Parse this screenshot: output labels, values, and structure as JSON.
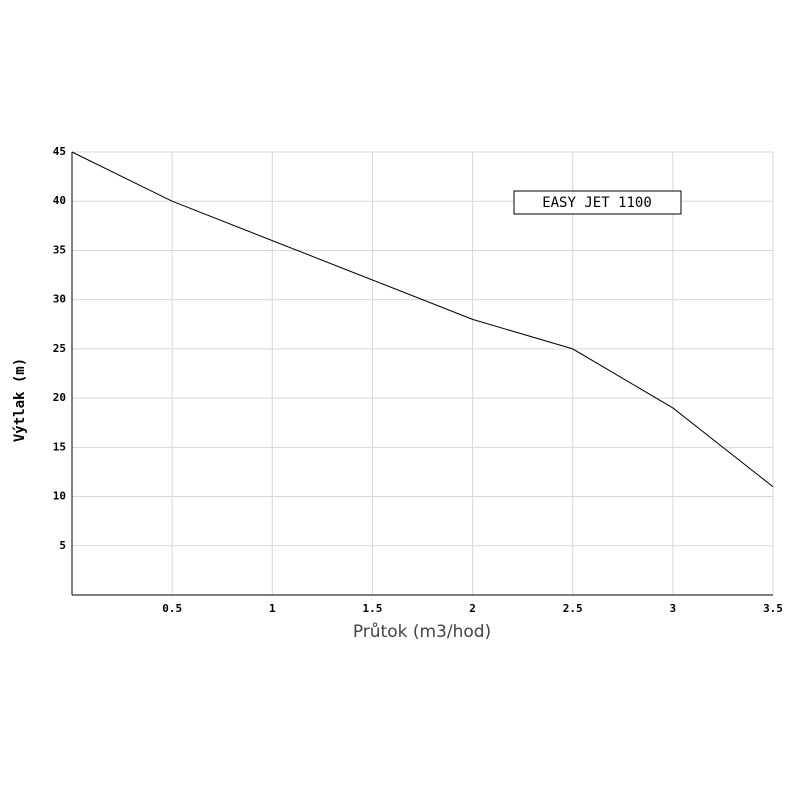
{
  "chart_data": {
    "type": "line",
    "xlabel": "Průtok (m3/hod)",
    "ylabel": "Výtlak (m)",
    "annotation": "EASY JET 1100",
    "x": [
      0,
      0.5,
      1,
      1.5,
      2,
      2.5,
      3,
      3.5
    ],
    "series": [
      {
        "name": "EASY JET 1100",
        "color": "#000000",
        "values": [
          45,
          40,
          36,
          32,
          28,
          25,
          19,
          11
        ]
      }
    ],
    "xlim": [
      0,
      3.5
    ],
    "ylim": [
      0,
      45
    ],
    "xticks": [
      0.5,
      1,
      1.5,
      2,
      2.5,
      3,
      3.5
    ],
    "yticks": [
      5,
      10,
      15,
      20,
      25,
      30,
      35,
      40,
      45
    ],
    "grid": true
  }
}
